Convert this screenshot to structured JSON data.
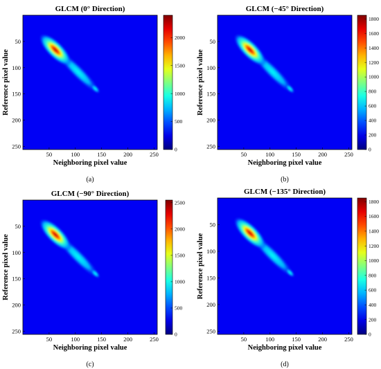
{
  "colormap": "jet",
  "chart_data": [
    {
      "type": "heatmap",
      "title": "GLCM (0° Direction)",
      "xlabel": "Neighboring pixel value",
      "ylabel": "Reference pixel value",
      "xticks": [
        50,
        100,
        150,
        200,
        250
      ],
      "yticks": [
        50,
        100,
        150,
        200,
        250
      ],
      "xlim": [
        0,
        256
      ],
      "ylim": [
        0,
        256
      ],
      "y_inverted": true,
      "colorbar_ticks": [
        0,
        500,
        1000,
        1500,
        2000
      ],
      "colorbar_range": [
        0,
        2400
      ],
      "peak": {
        "x": 62,
        "y": 66,
        "value": 2400
      },
      "caption": "(a)"
    },
    {
      "type": "heatmap",
      "title": "GLCM (−45° Direction)",
      "xlabel": "Neighboring pixel value",
      "ylabel": "Reference pixel value",
      "xticks": [
        50,
        100,
        150,
        200,
        250
      ],
      "yticks": [
        50,
        100,
        150,
        200,
        250
      ],
      "xlim": [
        0,
        256
      ],
      "ylim": [
        0,
        256
      ],
      "y_inverted": true,
      "colorbar_ticks": [
        0,
        200,
        400,
        600,
        800,
        1000,
        1200,
        1400,
        1600,
        1800
      ],
      "colorbar_range": [
        0,
        1850
      ],
      "peak": {
        "x": 62,
        "y": 66,
        "value": 1850
      },
      "caption": "(b)"
    },
    {
      "type": "heatmap",
      "title": "GLCM (−90° Direction)",
      "xlabel": "Neighboring pixel value",
      "ylabel": "Reference pixel value",
      "xticks": [
        50,
        100,
        150,
        200,
        250
      ],
      "yticks": [
        50,
        100,
        150,
        200,
        250
      ],
      "xlim": [
        0,
        256
      ],
      "ylim": [
        0,
        256
      ],
      "y_inverted": true,
      "colorbar_ticks": [
        0,
        500,
        1000,
        1500,
        2000,
        2500
      ],
      "colorbar_range": [
        0,
        2550
      ],
      "peak": {
        "x": 62,
        "y": 66,
        "value": 2550
      },
      "caption": "(c)"
    },
    {
      "type": "heatmap",
      "title": "GLCM (−135° Direction)",
      "xlabel": "Neighboring pixel value",
      "ylabel": "Reference pixel value",
      "xticks": [
        50,
        100,
        150,
        200,
        250
      ],
      "yticks": [
        50,
        100,
        150,
        200,
        250
      ],
      "xlim": [
        0,
        256
      ],
      "ylim": [
        0,
        256
      ],
      "y_inverted": true,
      "colorbar_ticks": [
        0,
        200,
        400,
        600,
        800,
        1000,
        1200,
        1400,
        1600,
        1800
      ],
      "colorbar_range": [
        0,
        1850
      ],
      "peak": {
        "x": 62,
        "y": 66,
        "value": 1850
      },
      "caption": "(d)"
    }
  ]
}
